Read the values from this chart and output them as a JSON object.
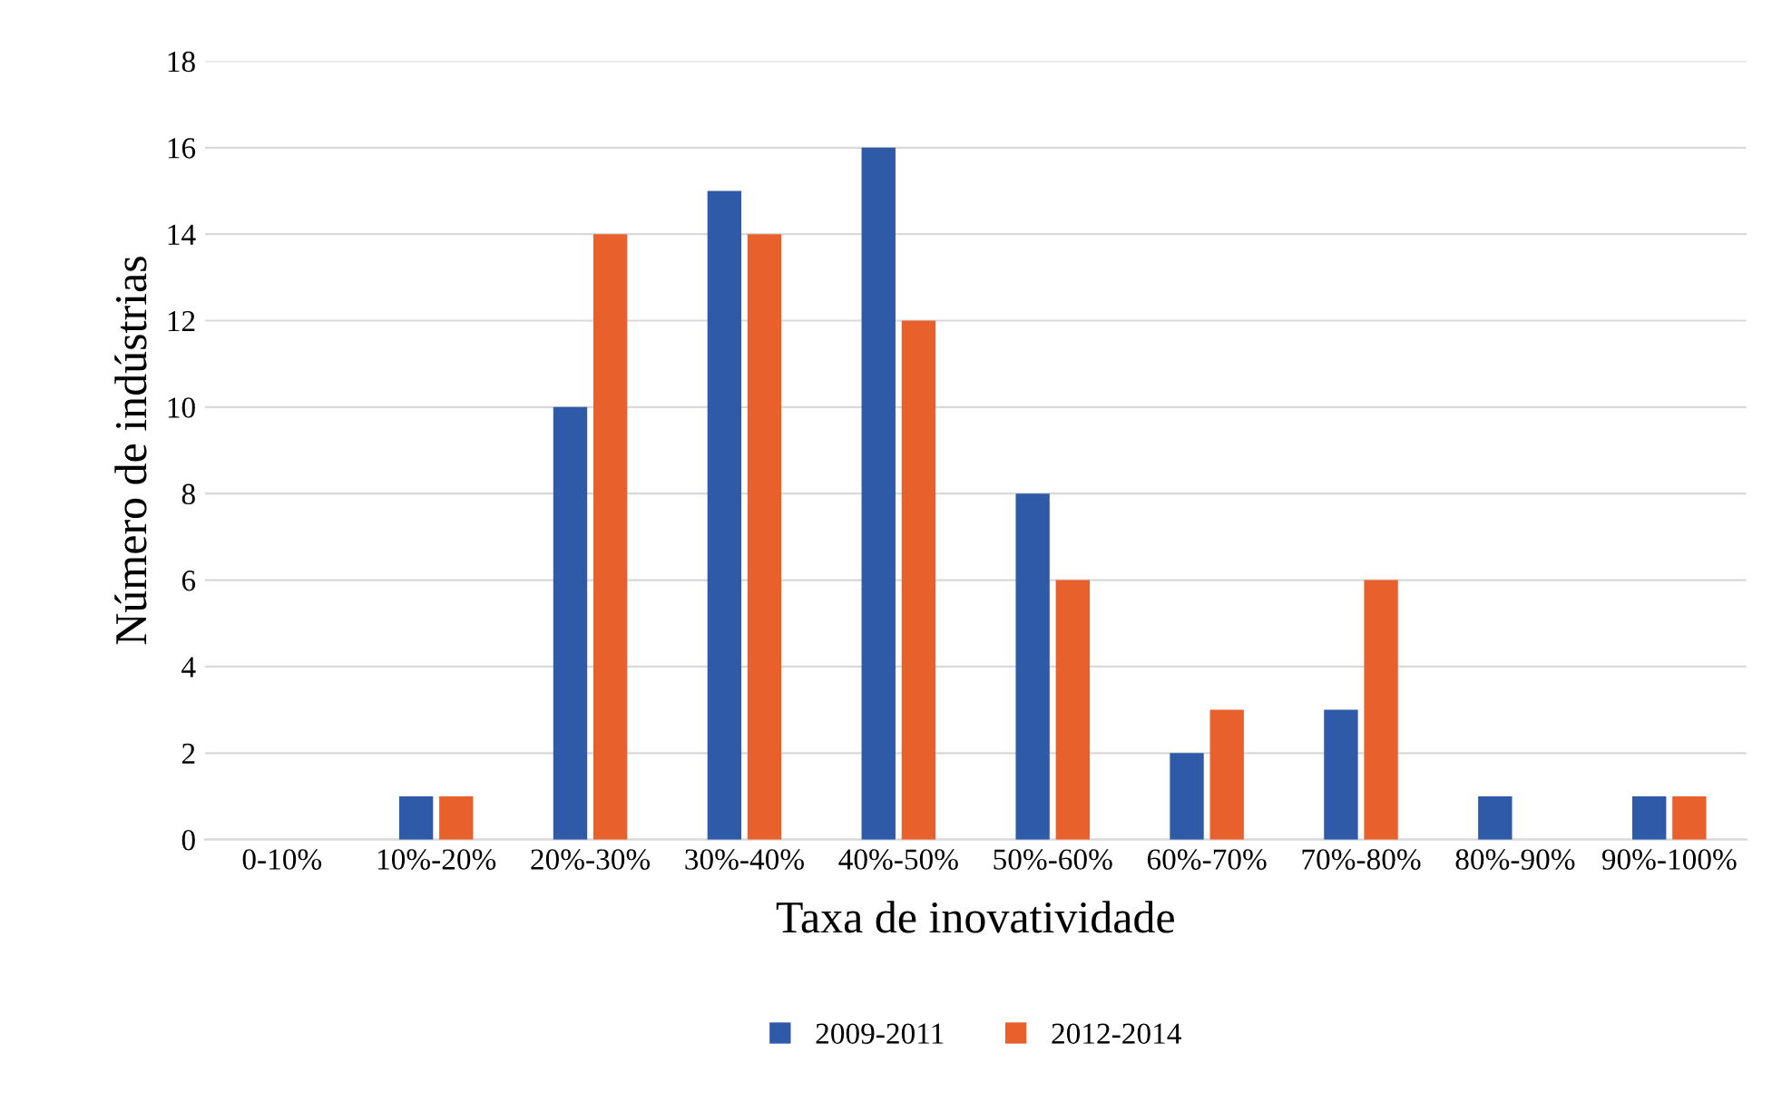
{
  "chart_data": {
    "type": "bar",
    "xlabel": "Taxa de inovatividade",
    "ylabel": "Número de indústrias",
    "categories": [
      "0-10%",
      "10%-20%",
      "20%-30%",
      "30%-40%",
      "40%-50%",
      "50%-60%",
      "60%-70%",
      "70%-80%",
      "80%-90%",
      "90%-100%"
    ],
    "series": [
      {
        "name": "2009-2011",
        "color": "#2e5aa8",
        "values": [
          0,
          1,
          10,
          15,
          16,
          8,
          2,
          3,
          1,
          1
        ]
      },
      {
        "name": "2012-2014",
        "color": "#e8612c",
        "values": [
          0,
          1,
          14,
          14,
          12,
          6,
          3,
          6,
          0,
          1
        ]
      }
    ],
    "ylim": [
      0,
      18
    ],
    "yticks": [
      0,
      2,
      4,
      6,
      8,
      10,
      12,
      14,
      16,
      18
    ],
    "grid": "y",
    "legend": "bottom"
  }
}
